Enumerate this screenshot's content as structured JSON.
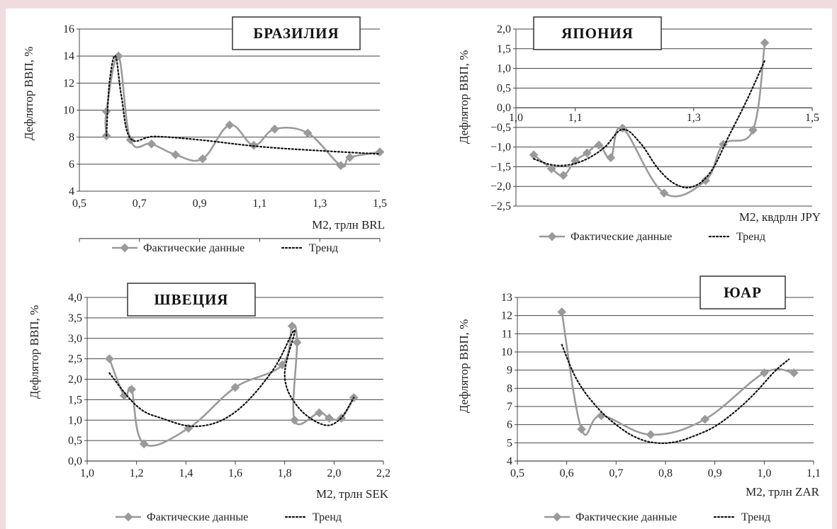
{
  "chart_data": [
    {
      "type": "line",
      "panel_title": "БРАЗИЛИЯ",
      "ylabel": "Дефлятор ВВП, %",
      "xlabel": "M2, трлн BRL",
      "xlim": [
        0.5,
        1.5
      ],
      "ylim": [
        4,
        16
      ],
      "x_ticks": [
        "0,5",
        "0,7",
        "0,9",
        "1,1",
        "1,3",
        "1,5"
      ],
      "y_ticks": [
        "4",
        "6",
        "8",
        "10",
        "12",
        "14",
        "16"
      ],
      "series": [
        {
          "name": "Фактические данные",
          "style": "solid-marker",
          "x": [
            0.59,
            0.59,
            0.63,
            0.67,
            0.74,
            0.82,
            0.91,
            1.0,
            1.08,
            1.15,
            1.26,
            1.37,
            1.4,
            1.5
          ],
          "y": [
            8.1,
            9.9,
            14.0,
            7.8,
            7.5,
            6.7,
            6.4,
            8.9,
            7.4,
            8.6,
            8.3,
            5.9,
            6.5,
            6.9
          ]
        },
        {
          "name": "Тренд",
          "style": "dotted",
          "x": [
            0.59,
            0.6,
            0.62,
            0.64,
            0.67,
            0.75,
            0.9,
            1.1,
            1.3,
            1.5
          ],
          "y": [
            8.1,
            12.0,
            14.0,
            11.0,
            7.9,
            8.05,
            7.8,
            7.3,
            7.0,
            6.75
          ]
        }
      ],
      "legend": [
        "Фактические данные",
        "Тренд"
      ],
      "grid": "horizontal"
    },
    {
      "type": "line",
      "panel_title": "ЯПОНИЯ",
      "ylabel": "Дефлятор ВВП, %",
      "xlabel": "M2, квдрлн JPY",
      "xlim": [
        1.0,
        1.5
      ],
      "ylim": [
        -2.5,
        2.0
      ],
      "x_ticks": [
        "1,0",
        "1,1",
        "1,3",
        "1,5"
      ],
      "y_ticks": [
        "−2,5",
        "−2,0",
        "−1,5",
        "−1,0",
        "−0,5",
        "0,0",
        "0,5",
        "1,0",
        "1,5",
        "2,0"
      ],
      "series": [
        {
          "name": "Фактические данные",
          "style": "solid-marker",
          "x": [
            1.03,
            1.06,
            1.08,
            1.1,
            1.12,
            1.14,
            1.16,
            1.18,
            1.25,
            1.32,
            1.35,
            1.4,
            1.42
          ],
          "y": [
            -1.2,
            -1.55,
            -1.72,
            -1.35,
            -1.15,
            -0.95,
            -1.27,
            -0.52,
            -2.17,
            -1.85,
            -0.93,
            -0.57,
            1.65
          ]
        },
        {
          "name": "Тренд",
          "style": "dotted",
          "x": [
            1.03,
            1.06,
            1.09,
            1.12,
            1.15,
            1.18,
            1.21,
            1.24,
            1.27,
            1.3,
            1.33,
            1.36,
            1.39,
            1.42
          ],
          "y": [
            -1.3,
            -1.45,
            -1.45,
            -1.3,
            -1.0,
            -0.55,
            -0.9,
            -1.55,
            -1.95,
            -2.0,
            -1.6,
            -0.7,
            0.2,
            1.2
          ]
        }
      ],
      "legend": [
        "Фактические данные",
        "Тренд"
      ],
      "grid": "horizontal"
    },
    {
      "type": "line",
      "panel_title": "ШВЕЦИЯ",
      "ylabel": "Дефлятор ВВП, %",
      "xlabel": "M2, трлн SEK",
      "xlim": [
        1.0,
        2.2
      ],
      "ylim": [
        0.0,
        4.0
      ],
      "x_ticks": [
        "1,0",
        "1,2",
        "1,4",
        "1,6",
        "1,8",
        "2,0",
        "2,2"
      ],
      "y_ticks": [
        "0,0",
        "0,5",
        "1,0",
        "1,5",
        "2,0",
        "2,5",
        "3,0",
        "3,5",
        "4,0"
      ],
      "series": [
        {
          "name": "Фактические данные",
          "style": "solid-marker",
          "x": [
            1.09,
            1.15,
            1.18,
            1.23,
            1.41,
            1.6,
            1.79,
            1.83,
            1.85,
            1.84,
            1.94,
            1.98,
            2.03,
            2.08
          ],
          "y": [
            2.5,
            1.6,
            1.75,
            0.42,
            0.8,
            1.8,
            2.35,
            3.3,
            2.9,
            1.0,
            1.18,
            1.05,
            1.05,
            1.55
          ]
        },
        {
          "name": "Тренд",
          "style": "dotted",
          "x": [
            1.09,
            1.2,
            1.3,
            1.45,
            1.6,
            1.75,
            1.84,
            1.8,
            1.85,
            1.95,
            2.02,
            2.08
          ],
          "y": [
            2.15,
            1.35,
            1.05,
            0.85,
            1.2,
            2.2,
            3.2,
            2.1,
            1.35,
            0.9,
            1.0,
            1.55
          ]
        }
      ],
      "legend": [
        "Фактические данные",
        "Тренд"
      ],
      "grid": "horizontal"
    },
    {
      "type": "line",
      "panel_title": "ЮАР",
      "ylabel": "Дефлятор ВВП, %",
      "xlabel": "M2, трлн ZAR",
      "xlim": [
        0.5,
        1.1
      ],
      "ylim": [
        4,
        13
      ],
      "x_ticks": [
        "0,5",
        "0,6",
        "0,7",
        "0,8",
        "0,9",
        "1,0",
        "1,1"
      ],
      "y_ticks": [
        "4",
        "5",
        "6",
        "7",
        "8",
        "9",
        "10",
        "11",
        "12",
        "13"
      ],
      "series": [
        {
          "name": "Фактические данные",
          "style": "solid-marker",
          "x": [
            0.59,
            0.63,
            0.67,
            0.77,
            0.88,
            1.0,
            1.06
          ],
          "y": [
            12.2,
            5.75,
            6.5,
            5.45,
            6.3,
            8.85,
            8.85
          ]
        },
        {
          "name": "Тренд",
          "style": "dotted",
          "x": [
            0.59,
            0.62,
            0.66,
            0.7,
            0.74,
            0.78,
            0.82,
            0.86,
            0.9,
            0.94,
            0.98,
            1.02,
            1.05
          ],
          "y": [
            10.4,
            8.5,
            7.0,
            6.0,
            5.3,
            5.0,
            5.05,
            5.4,
            5.9,
            6.7,
            7.7,
            8.9,
            9.6
          ]
        }
      ],
      "legend": [
        "Фактические данные",
        "Тренд"
      ],
      "grid": "horizontal"
    }
  ]
}
